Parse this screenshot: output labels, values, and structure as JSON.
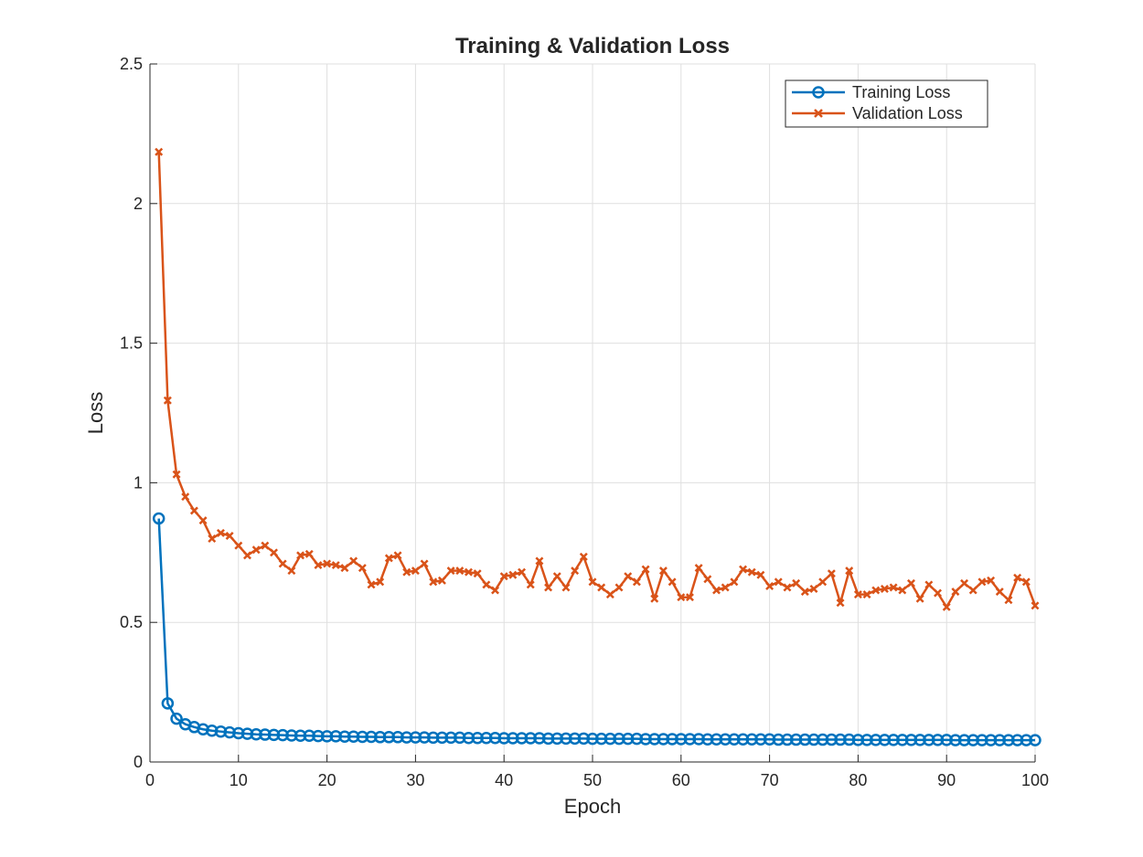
{
  "chart_data": {
    "type": "line",
    "title": "Training & Validation Loss",
    "xlabel": "Epoch",
    "ylabel": "Loss",
    "xlim": [
      0,
      100
    ],
    "ylim": [
      0,
      2.5
    ],
    "xticks": [
      0,
      10,
      20,
      30,
      40,
      50,
      60,
      70,
      80,
      90,
      100
    ],
    "yticks": [
      0,
      0.5,
      1,
      1.5,
      2,
      2.5
    ],
    "ytick_labels": [
      "0",
      "0.5",
      "1",
      "1.5",
      "2",
      "2.5"
    ],
    "grid": true,
    "legend_position": "top-right",
    "series": [
      {
        "name": "Training Loss",
        "color": "#0072BD",
        "marker": "circle",
        "x_start": 1,
        "values": [
          0.872,
          0.21,
          0.155,
          0.135,
          0.125,
          0.117,
          0.112,
          0.109,
          0.106,
          0.103,
          0.101,
          0.099,
          0.098,
          0.097,
          0.096,
          0.095,
          0.094,
          0.094,
          0.093,
          0.092,
          0.092,
          0.091,
          0.091,
          0.09,
          0.09,
          0.089,
          0.089,
          0.089,
          0.088,
          0.088,
          0.088,
          0.087,
          0.087,
          0.087,
          0.087,
          0.086,
          0.086,
          0.086,
          0.086,
          0.085,
          0.085,
          0.085,
          0.085,
          0.085,
          0.084,
          0.084,
          0.084,
          0.084,
          0.084,
          0.083,
          0.083,
          0.083,
          0.083,
          0.083,
          0.083,
          0.082,
          0.082,
          0.082,
          0.082,
          0.082,
          0.082,
          0.082,
          0.081,
          0.081,
          0.081,
          0.081,
          0.081,
          0.081,
          0.081,
          0.081,
          0.08,
          0.08,
          0.08,
          0.08,
          0.08,
          0.08,
          0.08,
          0.08,
          0.08,
          0.079,
          0.079,
          0.079,
          0.079,
          0.079,
          0.079,
          0.079,
          0.079,
          0.079,
          0.079,
          0.079,
          0.078,
          0.078,
          0.078,
          0.078,
          0.078,
          0.078,
          0.078,
          0.078,
          0.078,
          0.078
        ]
      },
      {
        "name": "Validation Loss",
        "color": "#D95319",
        "marker": "x",
        "x_start": 1,
        "values": [
          2.185,
          1.295,
          1.03,
          0.95,
          0.9,
          0.865,
          0.8,
          0.82,
          0.81,
          0.775,
          0.74,
          0.76,
          0.775,
          0.75,
          0.71,
          0.685,
          0.74,
          0.745,
          0.705,
          0.71,
          0.705,
          0.695,
          0.72,
          0.695,
          0.635,
          0.645,
          0.73,
          0.74,
          0.68,
          0.685,
          0.71,
          0.645,
          0.65,
          0.685,
          0.685,
          0.68,
          0.675,
          0.635,
          0.615,
          0.665,
          0.67,
          0.68,
          0.635,
          0.72,
          0.625,
          0.665,
          0.625,
          0.685,
          0.735,
          0.645,
          0.625,
          0.6,
          0.625,
          0.665,
          0.645,
          0.69,
          0.585,
          0.685,
          0.645,
          0.59,
          0.59,
          0.695,
          0.655,
          0.615,
          0.625,
          0.645,
          0.69,
          0.68,
          0.67,
          0.63,
          0.645,
          0.625,
          0.64,
          0.61,
          0.62,
          0.645,
          0.675,
          0.57,
          0.685,
          0.6,
          0.6,
          0.615,
          0.62,
          0.625,
          0.615,
          0.64,
          0.585,
          0.635,
          0.605,
          0.555,
          0.61,
          0.64,
          0.615,
          0.645,
          0.65,
          0.61,
          0.58,
          0.66,
          0.645,
          0.56
        ]
      }
    ]
  }
}
